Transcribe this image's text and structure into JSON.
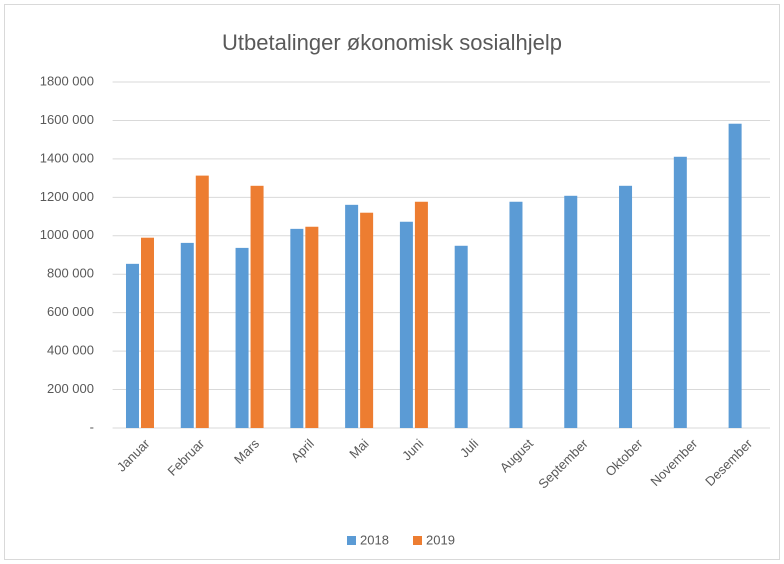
{
  "chart_data": {
    "type": "bar",
    "title": "Utbetalinger økonomisk sosialhjelp",
    "categories": [
      "Januar",
      "Februar",
      "Mars",
      "April",
      "Mai",
      "Juni",
      "Juli",
      "August",
      "September",
      "Oktober",
      "November",
      "Desember"
    ],
    "series": [
      {
        "name": "2018",
        "color": "#5b9bd5",
        "values": [
          854000,
          963000,
          937000,
          1036000,
          1161000,
          1073000,
          948000,
          1177000,
          1208000,
          1260000,
          1411000,
          1583000
        ]
      },
      {
        "name": "2019",
        "color": "#ed7d31",
        "values": [
          990000,
          1313000,
          1260000,
          1047000,
          1120000,
          1177000,
          null,
          null,
          null,
          null,
          null,
          null
        ]
      }
    ],
    "ylim": [
      0,
      1800000
    ],
    "yticks": [
      {
        "value": 0,
        "label": "-"
      },
      {
        "value": 200000,
        "label": "200 000"
      },
      {
        "value": 400000,
        "label": "400 000"
      },
      {
        "value": 600000,
        "label": "600 000"
      },
      {
        "value": 800000,
        "label": "800 000"
      },
      {
        "value": 1000000,
        "label": "1000 000"
      },
      {
        "value": 1200000,
        "label": "1200 000"
      },
      {
        "value": 1400000,
        "label": "1400 000"
      },
      {
        "value": 1600000,
        "label": "1600 000"
      },
      {
        "value": 1800000,
        "label": "1800 000"
      }
    ],
    "grid": true,
    "legend": "bottom"
  }
}
